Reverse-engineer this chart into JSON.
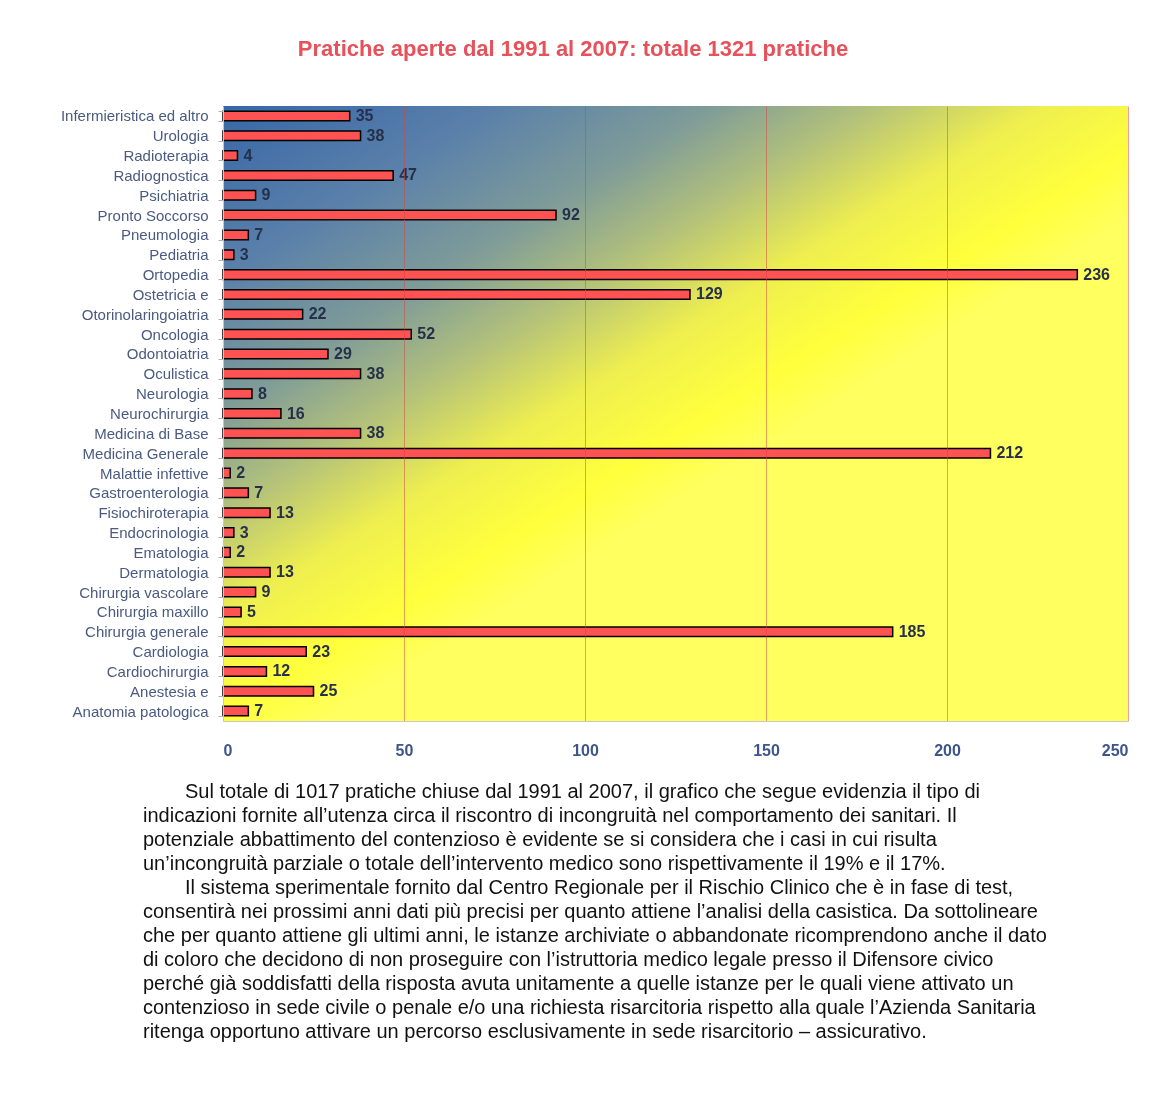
{
  "chart_data": {
    "type": "bar",
    "orientation": "horizontal",
    "title": "Pratiche aperte dal 1991 al 2007: totale 1321 pratiche",
    "categories": [
      "Infermieristica ed altro",
      "Urologia",
      "Radioterapia",
      "Radiognostica",
      "Psichiatria",
      "Pronto Soccorso",
      "Pneumologia",
      "Pediatria",
      "Ortopedia",
      "Ostetricia e",
      "Otorinolaringoiatria",
      "Oncologia",
      "Odontoiatria",
      "Oculistica",
      "Neurologia",
      "Neurochirurgia",
      "Medicina di Base",
      "Medicina Generale",
      "Malattie infettive",
      "Gastroenterologia",
      "Fisiochiroterapia",
      "Endocrinologia",
      "Ematologia",
      "Dermatologia",
      "Chirurgia vascolare",
      "Chirurgia maxillo",
      "Chirurgia generale",
      "Cardiologia",
      "Cardiochirurgia",
      "Anestesia e",
      "Anatomia patologica"
    ],
    "values": [
      35,
      38,
      4,
      47,
      9,
      92,
      7,
      3,
      236,
      129,
      22,
      52,
      29,
      38,
      8,
      16,
      38,
      212,
      2,
      7,
      13,
      3,
      2,
      13,
      9,
      5,
      185,
      23,
      12,
      25,
      7
    ],
    "color": "#ff5252",
    "xlim": [
      0,
      250
    ],
    "xticks": [
      0,
      50,
      100,
      150,
      200,
      250
    ],
    "grid": "x",
    "data_labels": true,
    "annotations": [
      "Sul totale di 1017 pratiche chiuse dal 1991 al 2007, il grafico che segue evidenzia il tipo di indicazioni fornite all’utenza circa il riscontro di incongruità nel comportamento dei sanitari. Il potenziale abbattimento del contenzioso è evidente se si considera che i casi in cui risulta un’incongruità parziale o totale dell’intervento medico sono rispettivamente il 19% e il 17%.",
      "Il sistema sperimentale fornito dal Centro Regionale per il Rischio Clinico che è in fase di test, consentirà nei prossimi anni dati più precisi per quanto attiene l’analisi della casistica. Da sottolineare che per quanto attiene gli ultimi anni, le istanze archiviate o abbandonate ricomprendono anche il dato di coloro che decidono di non proseguire con l’istruttoria medico legale presso il Difensore civico perché già soddisfatti della risposta avuta unitamente a quelle istanze per le quali viene attivato un contenzioso in sede civile o penale e/o una richiesta risarcitoria rispetto alla quale l’Azienda Sanitaria ritenga opportuno attivare un percorso esclusivamente in sede risarcitorio – assicurativo."
    ]
  }
}
